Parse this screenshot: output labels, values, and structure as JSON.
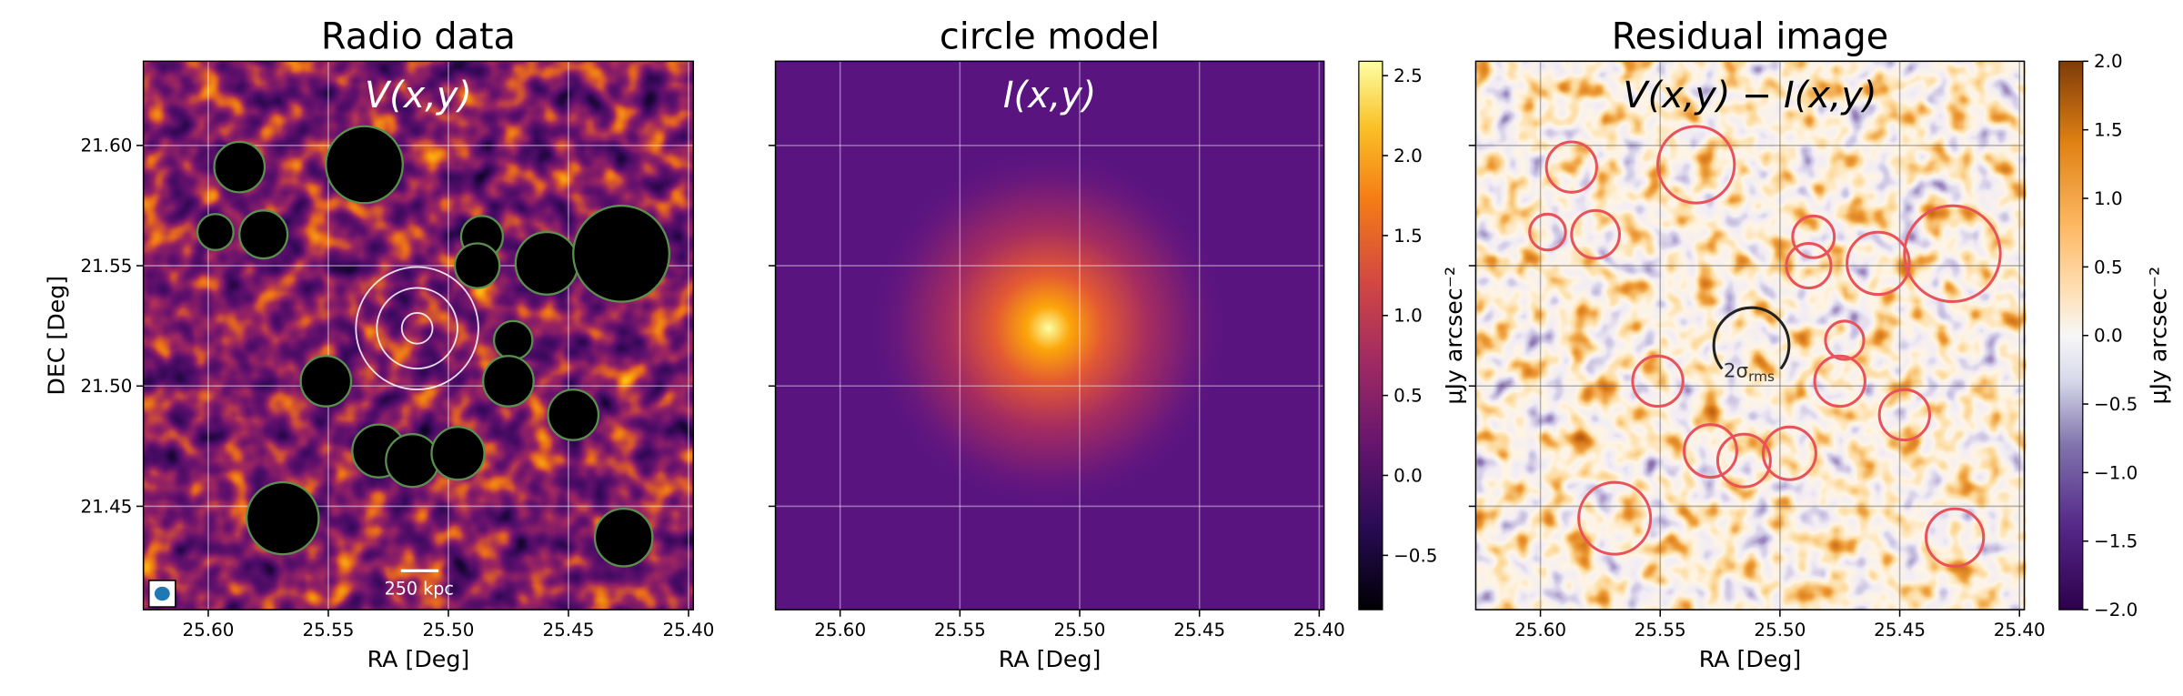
{
  "chart_data": [
    {
      "type": "image",
      "title": "Radio data",
      "inset_label": "V(x,y)",
      "xlabel": "RA [Deg]",
      "ylabel": "DEC [Deg]",
      "xlim": [
        25.627,
        25.398
      ],
      "ylim": [
        21.407,
        21.635
      ],
      "xticks": [
        {
          "value": 25.6,
          "label": "25.60"
        },
        25.55,
        {
          "value": 25.5,
          "label": "25.50"
        },
        25.45,
        {
          "value": 25.4,
          "label": "25.40"
        }
      ],
      "yticks": [
        21.45,
        {
          "value": 21.5,
          "label": "21.50"
        },
        21.55,
        {
          "value": 21.6,
          "label": "21.60"
        }
      ],
      "grid": true,
      "scale_bar": "250 kpc",
      "mask_color": "#000000",
      "mask_edge": "#5b8f4e",
      "masks": [
        {
          "ra": 25.587,
          "dec": 21.591,
          "r": 0.0105
        },
        {
          "ra": 25.535,
          "dec": 21.592,
          "r": 0.016
        },
        {
          "ra": 25.597,
          "dec": 21.564,
          "r": 0.0075
        },
        {
          "ra": 25.577,
          "dec": 21.563,
          "r": 0.01
        },
        {
          "ra": 25.486,
          "dec": 21.562,
          "r": 0.0087
        },
        {
          "ra": 25.488,
          "dec": 21.55,
          "r": 0.0093
        },
        {
          "ra": 25.459,
          "dec": 21.551,
          "r": 0.013
        },
        {
          "ra": 25.428,
          "dec": 21.555,
          "r": 0.02
        },
        {
          "ra": 25.473,
          "dec": 21.519,
          "r": 0.008
        },
        {
          "ra": 25.475,
          "dec": 21.502,
          "r": 0.0105
        },
        {
          "ra": 25.551,
          "dec": 21.502,
          "r": 0.0105
        },
        {
          "ra": 25.448,
          "dec": 21.488,
          "r": 0.0105
        },
        {
          "ra": 25.529,
          "dec": 21.473,
          "r": 0.011
        },
        {
          "ra": 25.515,
          "dec": 21.469,
          "r": 0.011
        },
        {
          "ra": 25.496,
          "dec": 21.472,
          "r": 0.011
        },
        {
          "ra": 25.569,
          "dec": 21.445,
          "r": 0.015
        },
        {
          "ra": 25.427,
          "dec": 21.437,
          "r": 0.012
        }
      ],
      "model_circles": {
        "ra": 25.513,
        "dec": 21.524,
        "r": [
          0.0064,
          0.0168,
          0.0255
        ]
      }
    },
    {
      "type": "image",
      "title": "circle model",
      "inset_label": "I(x,y)",
      "xlabel": "RA [Deg]",
      "xlim": [
        25.627,
        25.398
      ],
      "ylim": [
        21.407,
        21.635
      ],
      "xticks": [
        {
          "value": 25.6,
          "label": "25.60"
        },
        25.55,
        {
          "value": 25.5,
          "label": "25.50"
        },
        25.45,
        {
          "value": 25.4,
          "label": "25.40"
        }
      ],
      "yticks": [
        21.45,
        21.5,
        21.55,
        21.6
      ],
      "grid": true,
      "colorbar": {
        "label": "μJy arcsec⁻²",
        "lim": [
          -0.84,
          2.59
        ],
        "ticks": [
          {
            "value": -0.5,
            "label": "−0.5"
          },
          {
            "value": 0,
            "label": "0.0"
          },
          0.5,
          {
            "value": 1,
            "label": "1.0"
          },
          1.5,
          {
            "value": 2,
            "label": "2.0"
          },
          2.5
        ]
      }
    },
    {
      "type": "image",
      "title": "Residual image",
      "inset_label": "V(x,y) − I(x,y)",
      "xlabel": "RA [Deg]",
      "xlim": [
        25.627,
        25.398
      ],
      "ylim": [
        21.407,
        21.635
      ],
      "xticks": [
        {
          "value": 25.6,
          "label": "25.60"
        },
        25.55,
        {
          "value": 25.5,
          "label": "25.50"
        },
        25.45,
        {
          "value": 25.4,
          "label": "25.40"
        }
      ],
      "yticks": [
        21.45,
        21.5,
        21.55,
        21.6
      ],
      "grid": true,
      "mask_edge": "#e8535b",
      "annotation": "2σ",
      "annotation_sub": "rms",
      "colorbar": {
        "label": "μJy arcsec⁻²",
        "lim": [
          -2,
          2
        ],
        "ticks": [
          {
            "value": -2,
            "label": "−2.0"
          },
          {
            "value": -1.5,
            "label": "−1.5"
          },
          {
            "value": -1,
            "label": "−1.0"
          },
          {
            "value": -0.5,
            "label": "−0.5"
          },
          {
            "value": 0,
            "label": "0.0"
          },
          0.5,
          {
            "value": 1,
            "label": "1.0"
          },
          1.5,
          {
            "value": 2,
            "label": "2.0"
          }
        ]
      }
    }
  ]
}
